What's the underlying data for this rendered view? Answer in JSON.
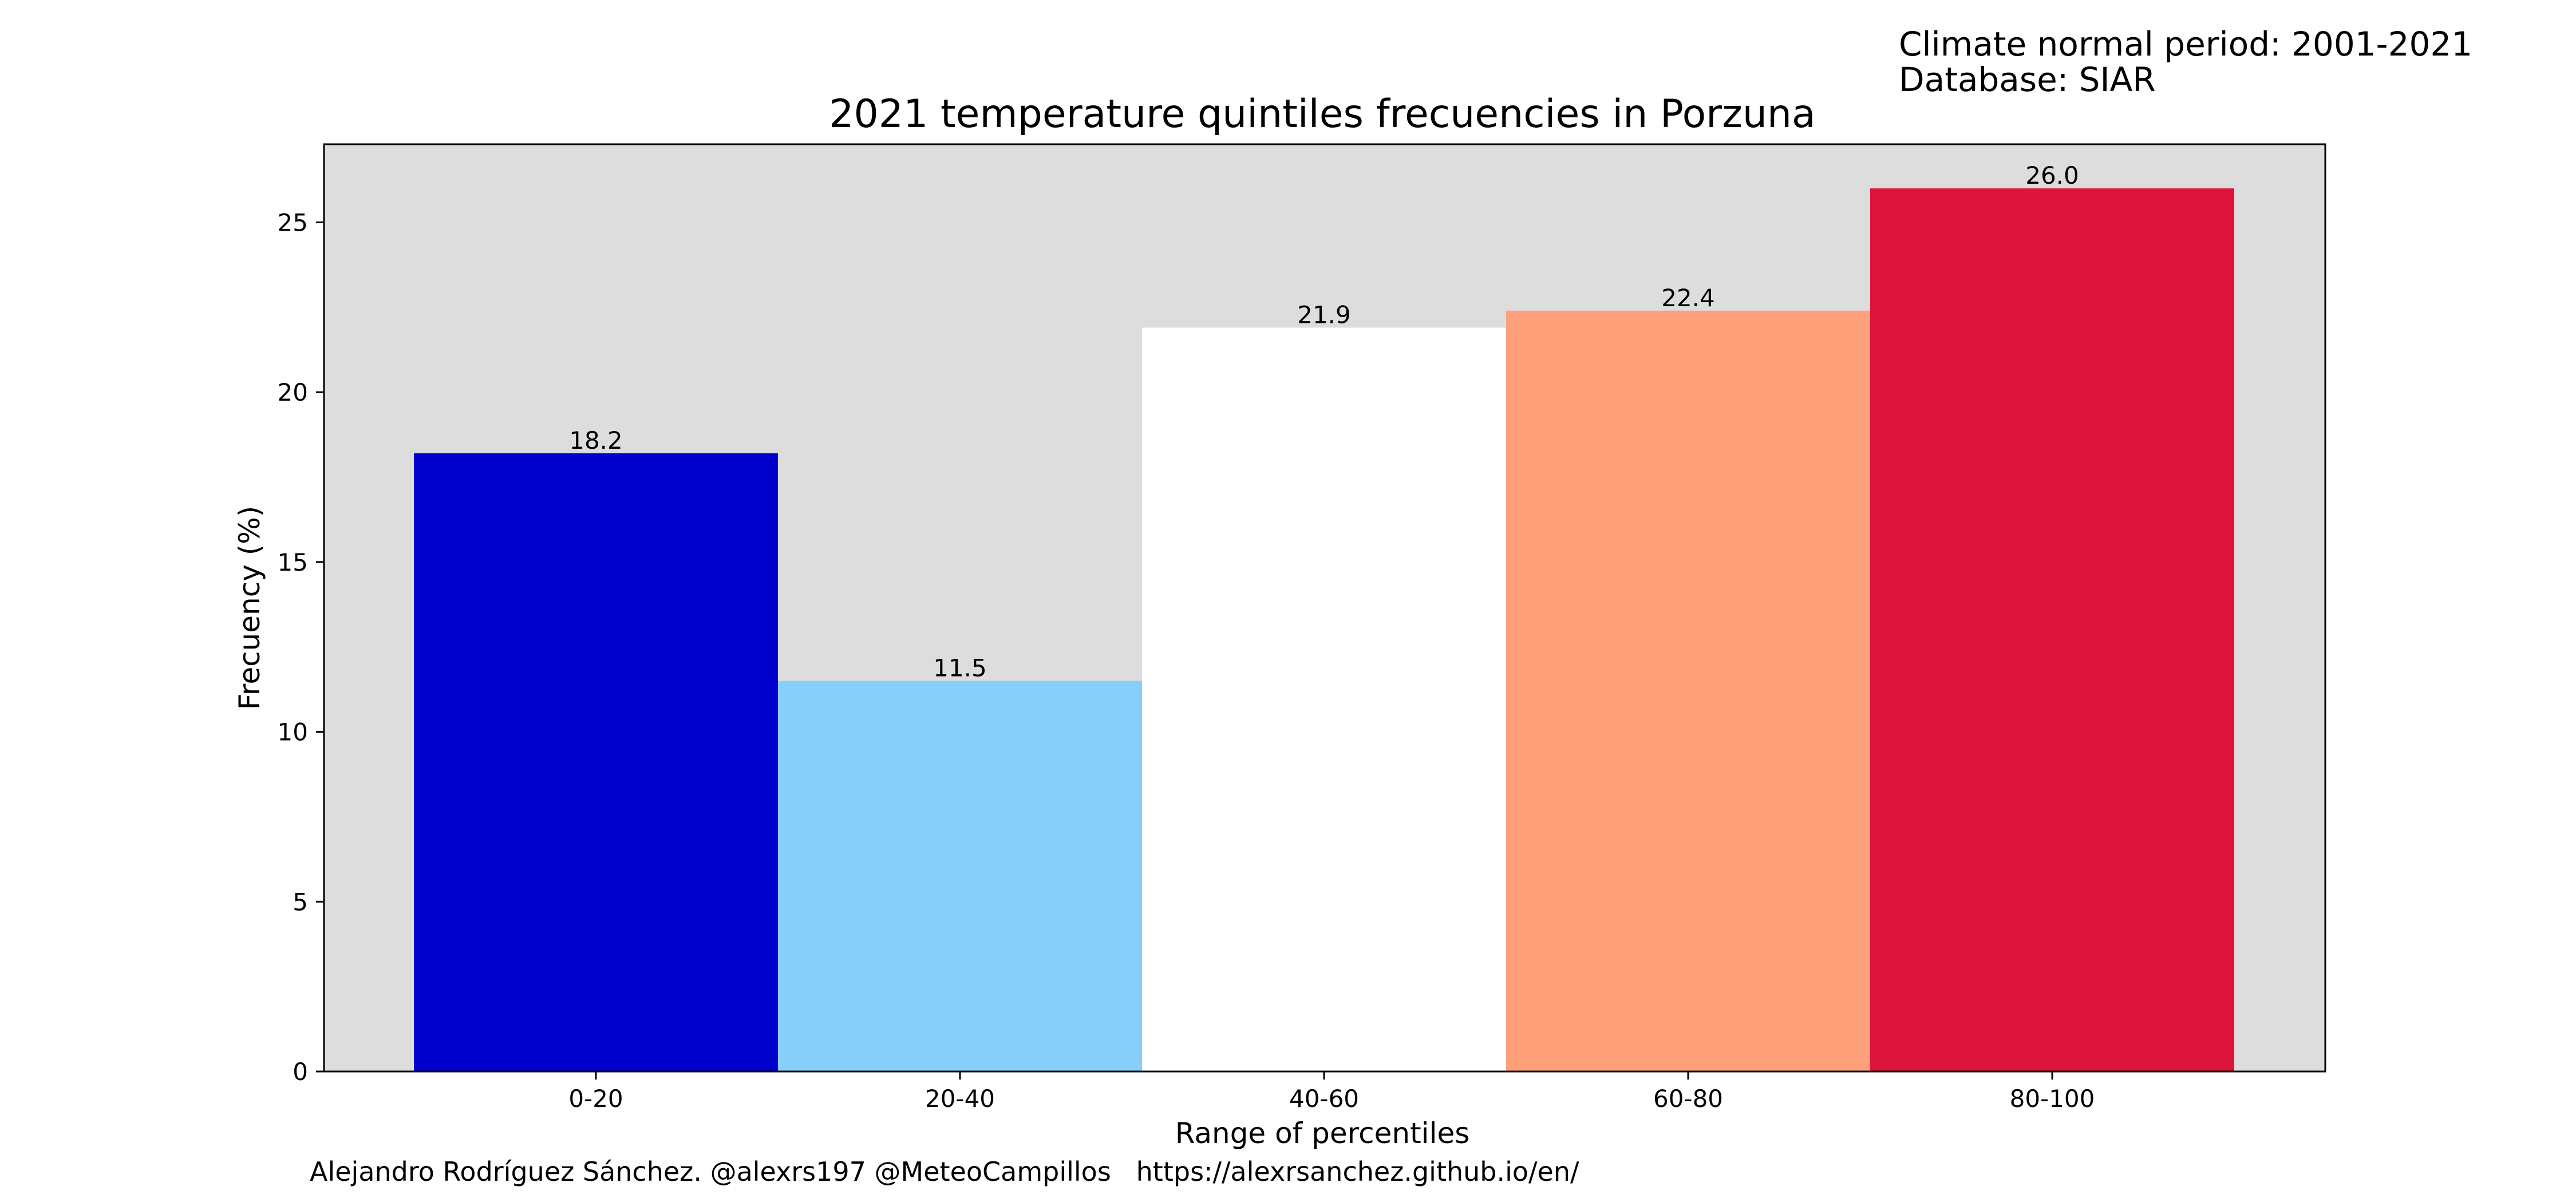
{
  "header": {
    "climate_period": "Climate normal period: 2001-2021",
    "database": "Database: SIAR"
  },
  "footer": {
    "credit": "Alejandro Rodríguez Sánchez. @alexrs197 @MeteoCampillos   https://alexrsanchez.github.io/en/"
  },
  "chart_data": {
    "type": "bar",
    "title": "2021 temperature quintiles frecuencies in Porzuna",
    "xlabel": "Range of percentiles",
    "ylabel": "Frecuency (%)",
    "categories": [
      "0-20",
      "20-40",
      "40-60",
      "60-80",
      "80-100"
    ],
    "values": [
      18.2,
      11.5,
      21.9,
      22.4,
      26.0
    ],
    "value_labels": [
      "18.2",
      "11.5",
      "21.9",
      "22.4",
      "26.0"
    ],
    "bar_colors": [
      "#0000cd",
      "#87cefa",
      "#ffffff",
      "#ffa07a",
      "#dc143c"
    ],
    "plot_background": "#dddddd",
    "yticks": [
      0,
      5,
      10,
      15,
      20,
      25
    ],
    "ylim": [
      0,
      27.3
    ],
    "grid": false,
    "legend": "none"
  }
}
